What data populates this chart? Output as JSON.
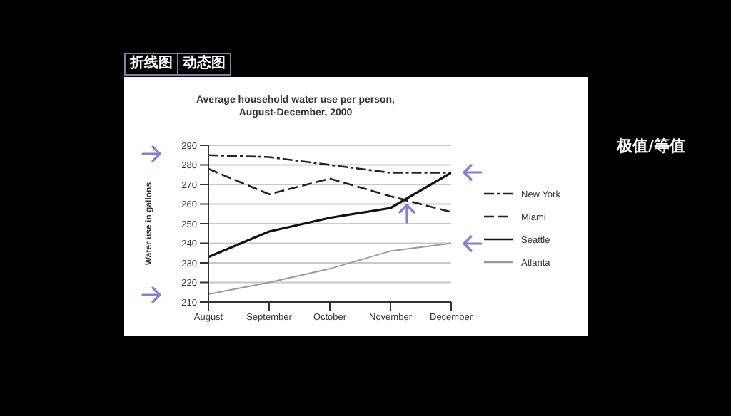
{
  "chart_data": {
    "type": "line",
    "title": "Average household water use per person,",
    "subtitle": "August-December, 2000",
    "ylabel": "Water use in gallons",
    "categories": [
      "August",
      "September",
      "October",
      "November",
      "December"
    ],
    "series": [
      {
        "name": "New York",
        "color": "#222222",
        "line_style": "dashdot",
        "values": [
          285,
          284,
          280,
          276,
          276
        ]
      },
      {
        "name": "Miami",
        "color": "#222222",
        "line_style": "dashed",
        "values": [
          278,
          265,
          273,
          264,
          256
        ]
      },
      {
        "name": "Seattle",
        "color": "#111111",
        "line_style": "solid",
        "values": [
          233,
          246,
          253,
          258,
          276
        ]
      },
      {
        "name": "Atlanta",
        "color": "#999999",
        "line_style": "solid",
        "values": [
          214,
          220,
          227,
          236,
          240
        ]
      }
    ],
    "ylim": [
      210,
      290
    ],
    "yticks": [
      210,
      220,
      230,
      240,
      250,
      260,
      270,
      280,
      290
    ],
    "grid": "y",
    "legend": "right",
    "marker": "none",
    "annotations": [
      "折线图",
      "动态图",
      "极值/等值"
    ]
  }
}
